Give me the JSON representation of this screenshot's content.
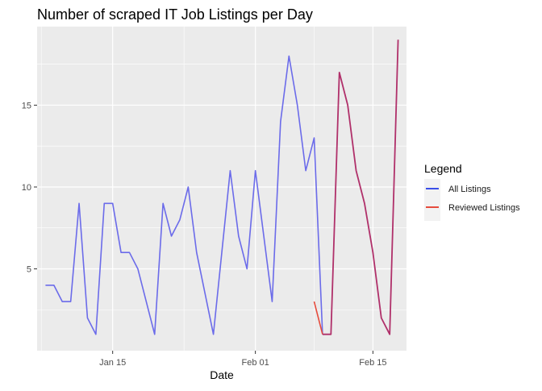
{
  "chart_data": {
    "type": "line",
    "title": "Number of scraped IT Job Listings per Day",
    "xlabel": "Date",
    "ylabel": "",
    "x_tick_labels": [
      "Jan 15",
      "Feb 01",
      "Feb 15"
    ],
    "x_ticks": [
      "2024-01-15",
      "2024-02-01",
      "2024-02-15"
    ],
    "y_ticks": [
      5,
      10,
      15
    ],
    "xlim": [
      "2024-01-06",
      "2024-02-19"
    ],
    "ylim": [
      0,
      19.8
    ],
    "grid": true,
    "legend": {
      "title": "Legend",
      "placement": "right",
      "entries": [
        "All Listings",
        "Reviewed Listings"
      ]
    },
    "series": [
      {
        "name": "All Listings",
        "color": "#6b6bea",
        "points": [
          [
            "2024-01-07",
            4
          ],
          [
            "2024-01-08",
            4
          ],
          [
            "2024-01-09",
            3
          ],
          [
            "2024-01-10",
            3
          ],
          [
            "2024-01-11",
            9
          ],
          [
            "2024-01-12",
            2
          ],
          [
            "2024-01-13",
            1
          ],
          [
            "2024-01-14",
            9
          ],
          [
            "2024-01-15",
            9
          ],
          [
            "2024-01-16",
            6
          ],
          [
            "2024-01-17",
            6
          ],
          [
            "2024-01-18",
            5
          ],
          [
            "2024-01-19",
            3
          ],
          [
            "2024-01-20",
            1
          ],
          [
            "2024-01-21",
            9
          ],
          [
            "2024-01-22",
            7
          ],
          [
            "2024-01-23",
            8
          ],
          [
            "2024-01-24",
            10
          ],
          [
            "2024-01-25",
            6
          ],
          [
            "2024-01-26",
            3.5
          ],
          [
            "2024-01-27",
            1
          ],
          [
            "2024-01-28",
            6
          ],
          [
            "2024-01-29",
            11
          ],
          [
            "2024-01-30",
            7
          ],
          [
            "2024-01-31",
            5
          ],
          [
            "2024-02-01",
            11
          ],
          [
            "2024-02-02",
            7
          ],
          [
            "2024-02-03",
            3
          ],
          [
            "2024-02-04",
            14
          ],
          [
            "2024-02-05",
            18
          ],
          [
            "2024-02-06",
            15
          ],
          [
            "2024-02-07",
            11
          ],
          [
            "2024-02-08",
            13
          ],
          [
            "2024-02-09",
            1
          ],
          [
            "2024-02-10",
            1
          ],
          [
            "2024-02-11",
            17
          ],
          [
            "2024-02-12",
            15
          ],
          [
            "2024-02-13",
            11
          ],
          [
            "2024-02-14",
            9
          ],
          [
            "2024-02-15",
            6
          ],
          [
            "2024-02-16",
            2
          ],
          [
            "2024-02-17",
            1
          ],
          [
            "2024-02-18",
            19
          ]
        ]
      },
      {
        "name": "Reviewed Listings",
        "color": "#e64b3c",
        "points": [
          [
            "2024-02-08",
            3
          ],
          [
            "2024-02-09",
            1
          ],
          [
            "2024-02-10",
            1
          ],
          [
            "2024-02-11",
            17
          ],
          [
            "2024-02-12",
            15
          ],
          [
            "2024-02-13",
            11
          ],
          [
            "2024-02-14",
            9
          ],
          [
            "2024-02-15",
            6
          ],
          [
            "2024-02-16",
            2
          ],
          [
            "2024-02-17",
            1
          ],
          [
            "2024-02-18",
            19
          ]
        ]
      }
    ],
    "overlap_color": "#b0306a",
    "legend_colors": [
      "#3a4ee8",
      "#e64b3c"
    ]
  }
}
